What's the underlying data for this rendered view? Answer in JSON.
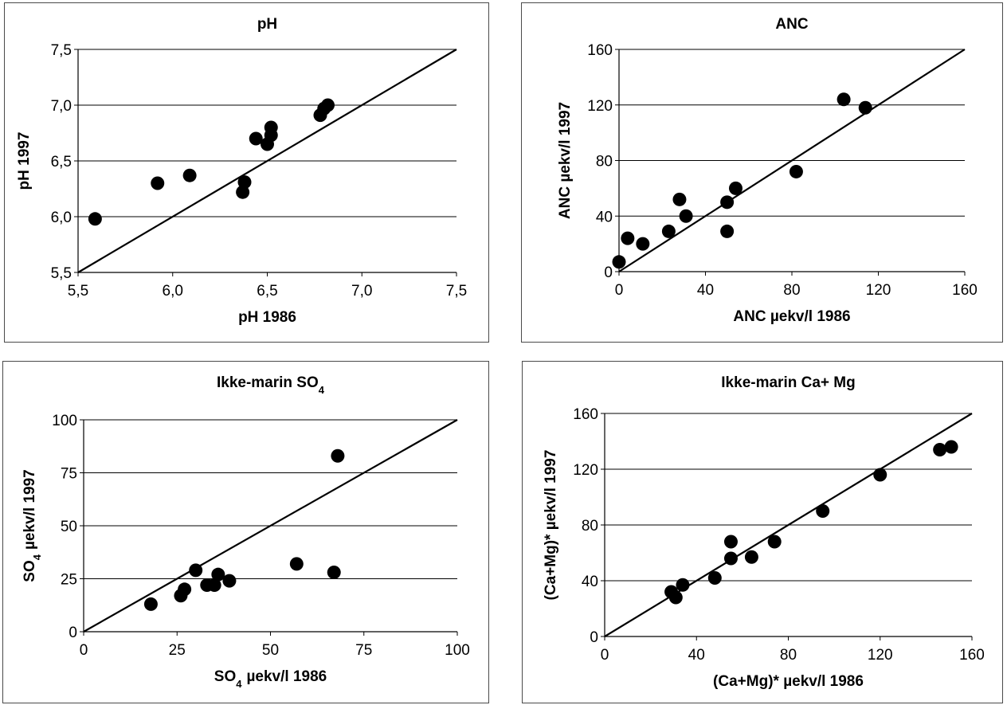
{
  "colors": {
    "grid": "#000000",
    "point": "#000000",
    "line": "#000000",
    "frame": "#4a4a4a"
  },
  "chart_data": [
    {
      "type": "scatter",
      "title": "pH",
      "xlabel": "pH 1986",
      "ylabel": "pH 1997",
      "xlim": [
        5.5,
        7.5
      ],
      "ylim": [
        5.5,
        7.5
      ],
      "xticks": [
        "5,5",
        "6,0",
        "6,5",
        "7,0",
        "7,5"
      ],
      "yticks": [
        "5,5",
        "6,0",
        "6,5",
        "7,0",
        "7,5"
      ],
      "grid": "horizontal",
      "reference_line": "1:1",
      "points": [
        {
          "x": 5.59,
          "y": 5.98
        },
        {
          "x": 5.92,
          "y": 6.3
        },
        {
          "x": 6.09,
          "y": 6.37
        },
        {
          "x": 6.37,
          "y": 6.22
        },
        {
          "x": 6.38,
          "y": 6.31
        },
        {
          "x": 6.44,
          "y": 6.7
        },
        {
          "x": 6.5,
          "y": 6.65
        },
        {
          "x": 6.52,
          "y": 6.73
        },
        {
          "x": 6.52,
          "y": 6.8
        },
        {
          "x": 6.78,
          "y": 6.91
        },
        {
          "x": 6.8,
          "y": 6.97
        },
        {
          "x": 6.82,
          "y": 7.0
        }
      ]
    },
    {
      "type": "scatter",
      "title": "ANC",
      "xlabel": "ANC µekv/l 1986",
      "ylabel": "ANC µekv/l 1997",
      "xlim": [
        0,
        160
      ],
      "ylim": [
        0,
        160
      ],
      "xticks": [
        "0",
        "40",
        "80",
        "120",
        "160"
      ],
      "yticks": [
        "0",
        "40",
        "80",
        "120",
        "160"
      ],
      "grid": "horizontal",
      "reference_line": "1:1",
      "points": [
        {
          "x": 0,
          "y": 7
        },
        {
          "x": 4,
          "y": 24
        },
        {
          "x": 11,
          "y": 20
        },
        {
          "x": 23,
          "y": 29
        },
        {
          "x": 28,
          "y": 52
        },
        {
          "x": 31,
          "y": 40
        },
        {
          "x": 50,
          "y": 50
        },
        {
          "x": 50,
          "y": 29
        },
        {
          "x": 54,
          "y": 60
        },
        {
          "x": 82,
          "y": 72
        },
        {
          "x": 104,
          "y": 124
        },
        {
          "x": 114,
          "y": 118
        }
      ]
    },
    {
      "type": "scatter",
      "title": "Ikke-marin SO",
      "title_sub": "4",
      "xlabel": "µekv/l 1986",
      "xlabel_prefix": "SO",
      "xlabel_sub": "4",
      "ylabel": "µekv/l 1997",
      "ylabel_prefix": "SO",
      "ylabel_sub": "4",
      "xlim": [
        0,
        100
      ],
      "ylim": [
        0,
        100
      ],
      "xticks": [
        "0",
        "25",
        "50",
        "75",
        "100"
      ],
      "yticks": [
        "0",
        "25",
        "50",
        "75",
        "100"
      ],
      "grid": "horizontal",
      "reference_line": "1:1",
      "points": [
        {
          "x": 18,
          "y": 13
        },
        {
          "x": 26,
          "y": 17
        },
        {
          "x": 27,
          "y": 20
        },
        {
          "x": 30,
          "y": 29
        },
        {
          "x": 33,
          "y": 22
        },
        {
          "x": 35,
          "y": 22
        },
        {
          "x": 36,
          "y": 27
        },
        {
          "x": 39,
          "y": 24
        },
        {
          "x": 57,
          "y": 32
        },
        {
          "x": 67,
          "y": 28
        },
        {
          "x": 68,
          "y": 83
        }
      ]
    },
    {
      "type": "scatter",
      "title": "Ikke-marin Ca+ Mg",
      "xlabel": "(Ca+Mg)* µekv/l 1986",
      "ylabel": "(Ca+Mg)* µekv/l 1997",
      "xlim": [
        0,
        160
      ],
      "ylim": [
        0,
        160
      ],
      "xticks": [
        "0",
        "40",
        "80",
        "120",
        "160"
      ],
      "yticks": [
        "0",
        "40",
        "80",
        "120",
        "160"
      ],
      "grid": "horizontal",
      "reference_line": "1:1",
      "points": [
        {
          "x": 29,
          "y": 32
        },
        {
          "x": 31,
          "y": 28
        },
        {
          "x": 34,
          "y": 37
        },
        {
          "x": 48,
          "y": 42
        },
        {
          "x": 55,
          "y": 56
        },
        {
          "x": 55,
          "y": 68
        },
        {
          "x": 64,
          "y": 57
        },
        {
          "x": 74,
          "y": 68
        },
        {
          "x": 95,
          "y": 90
        },
        {
          "x": 120,
          "y": 116
        },
        {
          "x": 146,
          "y": 134
        },
        {
          "x": 151,
          "y": 136
        }
      ]
    }
  ]
}
